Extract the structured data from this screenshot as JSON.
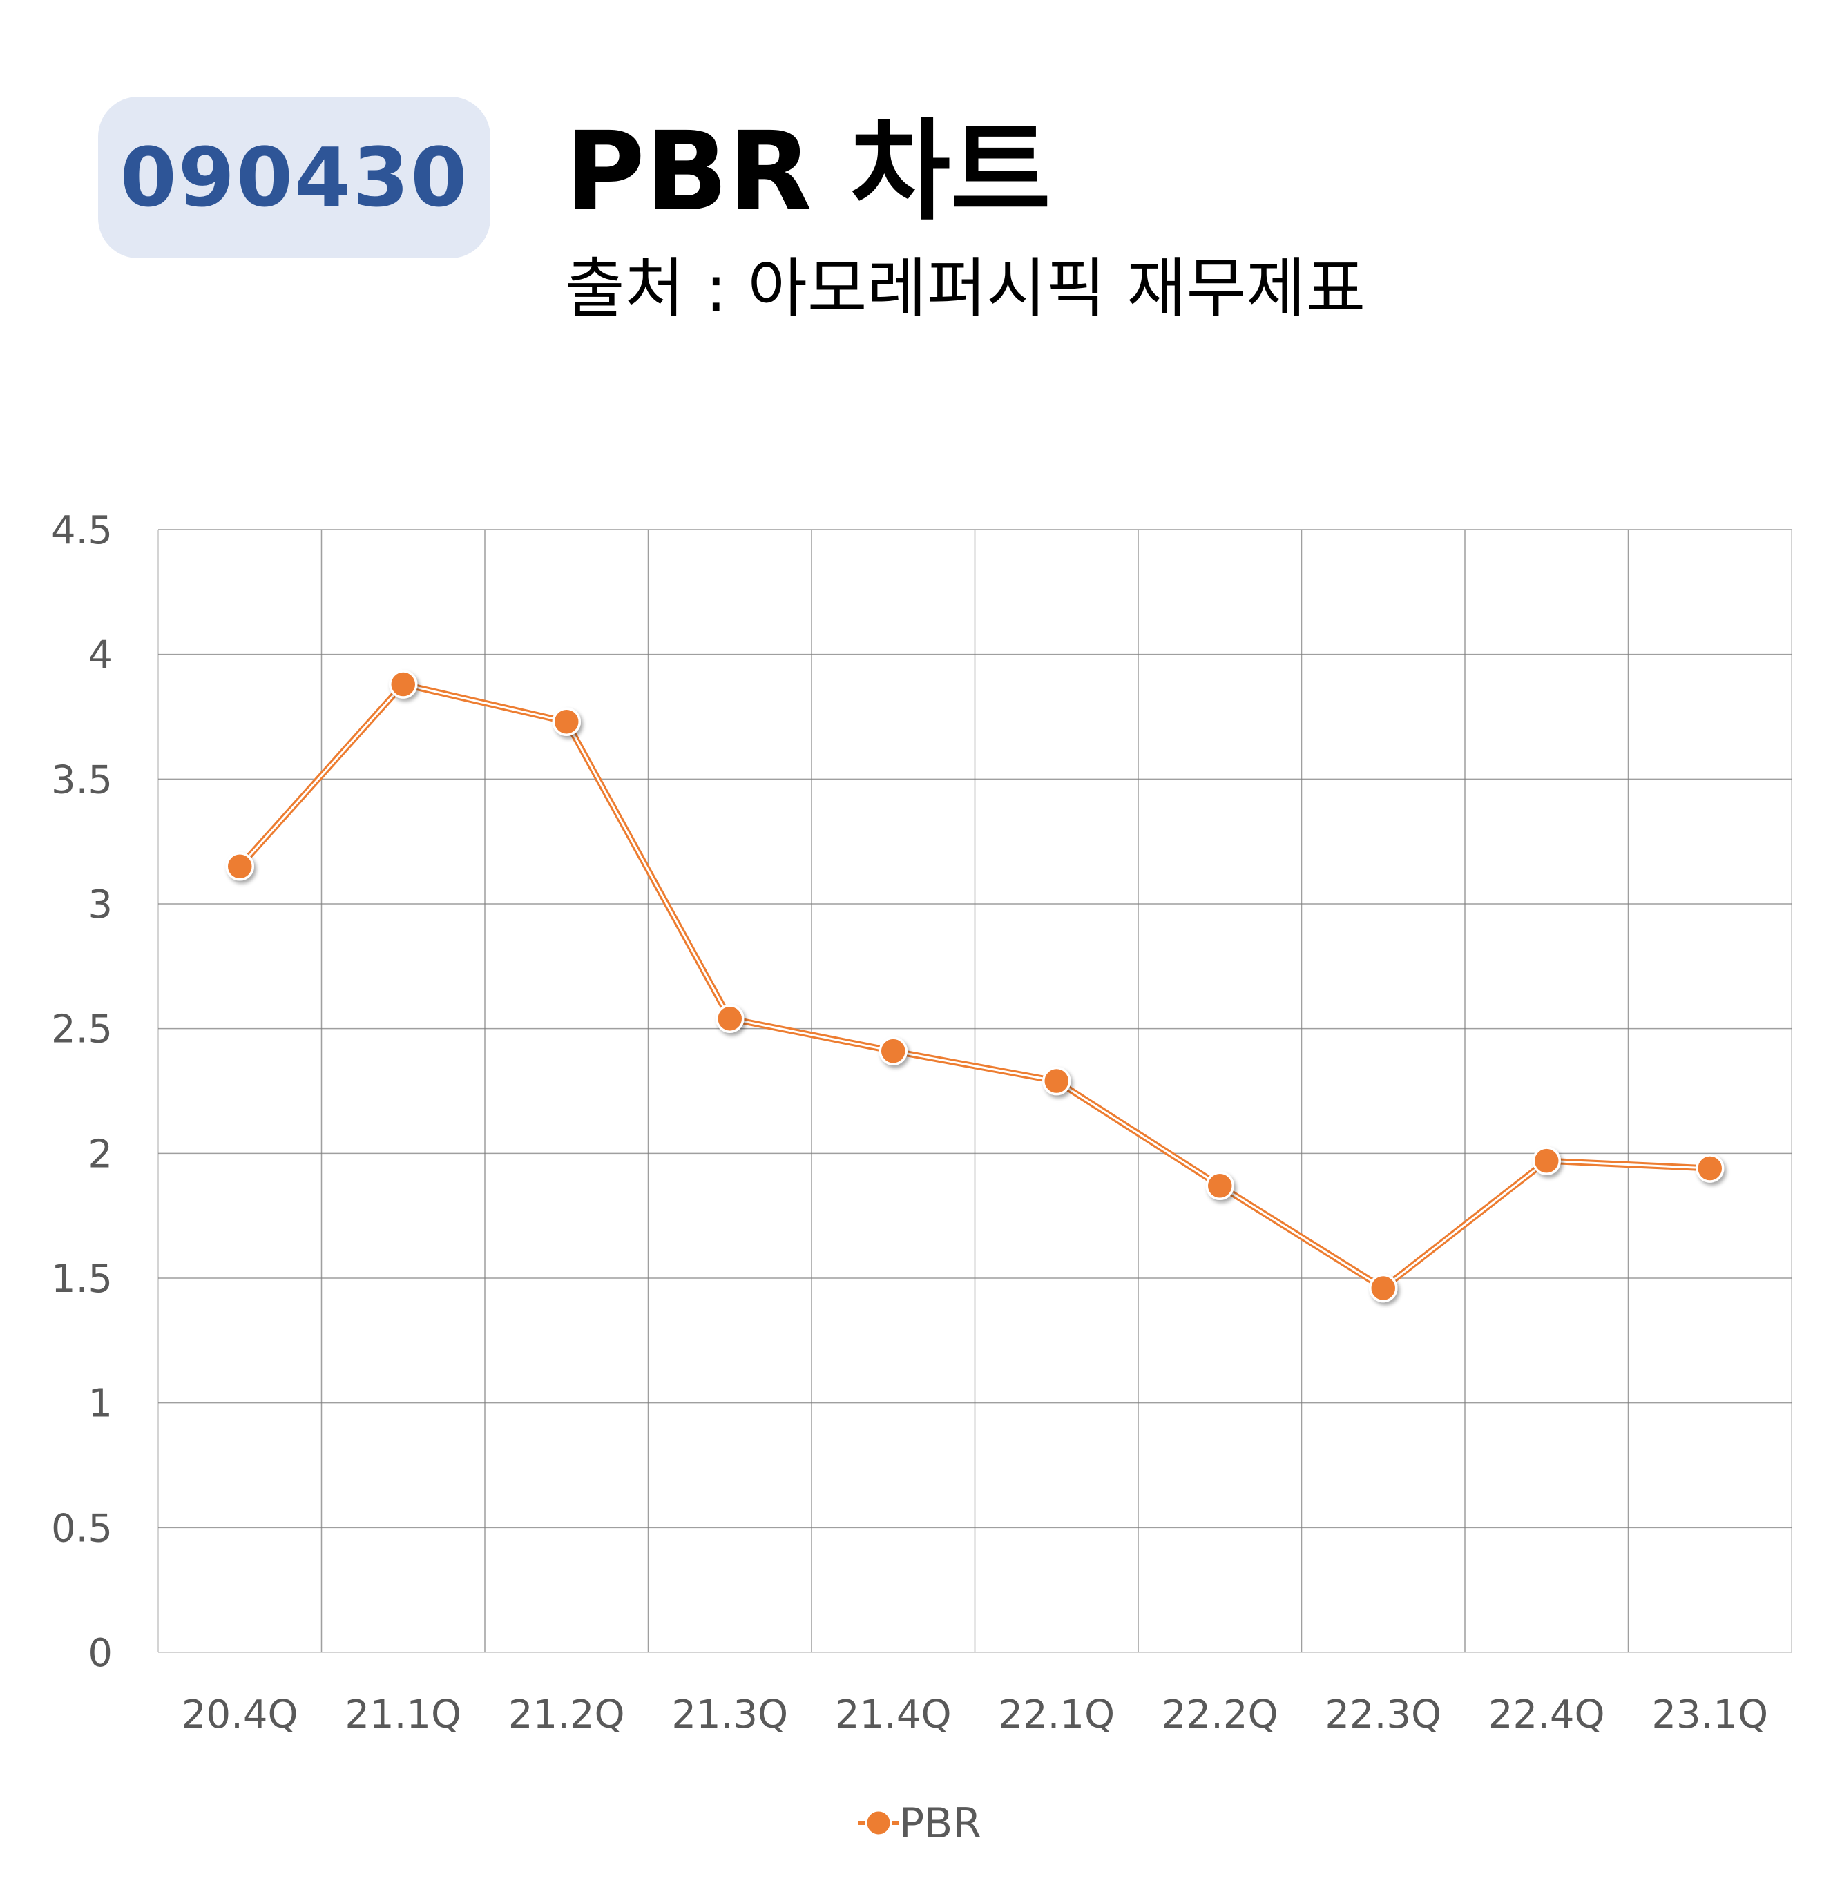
{
  "header": {
    "code": "090430",
    "title": "PBR 차트",
    "subtitle": "출처 : 아모레퍼시픽 재무제표"
  },
  "colors": {
    "badge_bg": "#e2e8f4",
    "badge_text": "#2e5597",
    "series": "#ed7d31",
    "grid": "#7f7f7f",
    "tick_text": "#595959"
  },
  "chart_data": {
    "type": "line",
    "categories": [
      "20.4Q",
      "21.1Q",
      "21.2Q",
      "21.3Q",
      "21.4Q",
      "22.1Q",
      "22.2Q",
      "22.3Q",
      "22.4Q",
      "23.1Q"
    ],
    "series": [
      {
        "name": "PBR",
        "values": [
          3.15,
          3.88,
          3.73,
          2.54,
          2.41,
          2.29,
          1.87,
          1.46,
          1.97,
          1.94
        ]
      }
    ],
    "ylim": [
      0,
      4.5
    ],
    "yticks": [
      "0",
      "0.5",
      "1",
      "1.5",
      "2",
      "2.5",
      "3",
      "3.5",
      "4",
      "4.5"
    ],
    "grid": true,
    "legend": "bottom",
    "title": "",
    "xlabel": "",
    "ylabel": ""
  }
}
